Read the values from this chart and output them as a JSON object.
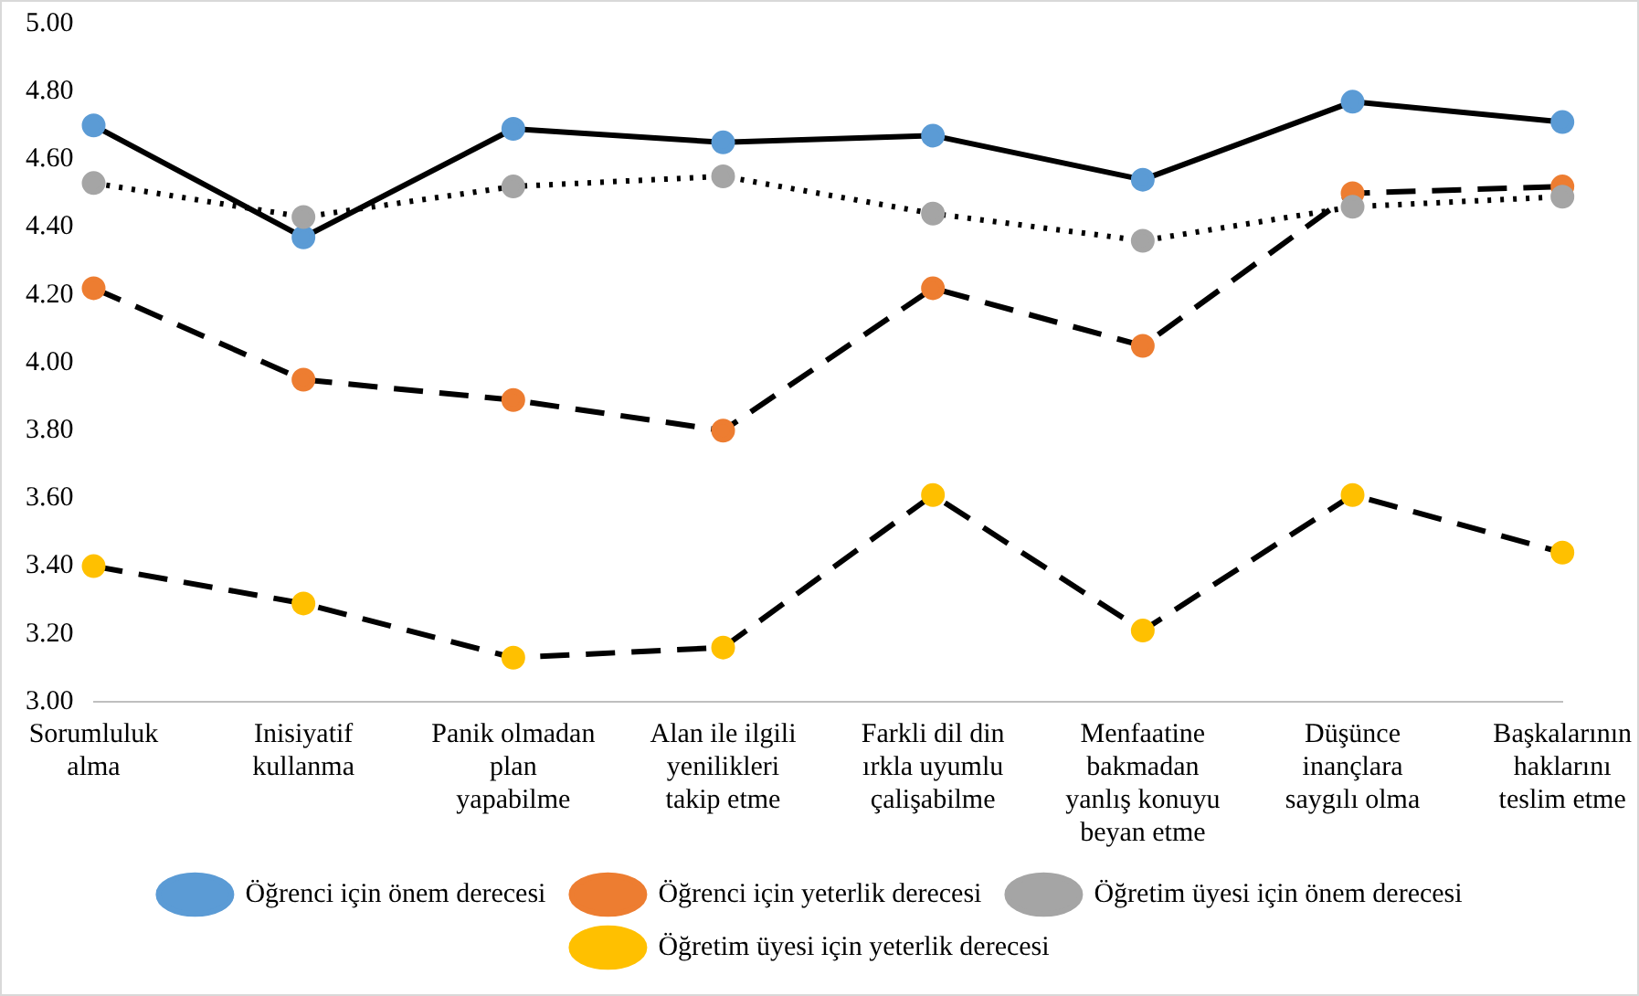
{
  "chart_data": {
    "type": "line",
    "categories": [
      "Sorumluluk alma",
      "Inisiyatif kullanma",
      "Panik olmadan plan yapabilme",
      "Alan ile ilgili yenilikleri takip etme",
      "Farkli dil din ırkla uyumlu çalişabilme",
      "Menfaatine bakmadan yanlış konuyu beyan etme",
      "Düşünce inançlara saygılı olma",
      "Başkalarının haklarını teslim etme"
    ],
    "series": [
      {
        "name": "Öğrenci için önem derecesi",
        "color": "#5b9bd5",
        "line_style": "solid",
        "values": [
          4.7,
          4.37,
          4.69,
          4.65,
          4.67,
          4.54,
          4.77,
          4.71
        ]
      },
      {
        "name": "Öğrenci için yeterlik derecesi",
        "color": "#ed7d31",
        "line_style": "dashed",
        "values": [
          4.22,
          3.95,
          3.89,
          3.8,
          4.22,
          4.05,
          4.5,
          4.52
        ]
      },
      {
        "name": "Öğretim üyesi için önem derecesi",
        "color": "#a5a5a5",
        "line_style": "dotted",
        "values": [
          4.53,
          4.43,
          4.52,
          4.55,
          4.44,
          4.36,
          4.46,
          4.49
        ]
      },
      {
        "name": "Öğretim üyesi için yeterlik derecesi",
        "color": "#ffc000",
        "line_style": "dashed",
        "values": [
          3.4,
          3.29,
          3.13,
          3.16,
          3.61,
          3.21,
          3.61,
          3.44
        ]
      }
    ],
    "ylim": [
      3,
      5
    ],
    "yticks": [
      {
        "value": 3,
        "label": "3.00"
      },
      {
        "value": 3.2,
        "label": "3.20"
      },
      {
        "value": 3.4,
        "label": "3.40"
      },
      {
        "value": 3.6,
        "label": "3.60"
      },
      {
        "value": 3.8,
        "label": "3.80"
      },
      {
        "value": 4,
        "label": "4.00"
      },
      {
        "value": 4.2,
        "label": "4.20"
      },
      {
        "value": 4.4,
        "label": "4.40"
      },
      {
        "value": 4.6,
        "label": "4.60"
      },
      {
        "value": 4.8,
        "label": "4.80"
      },
      {
        "value": 5,
        "label": "5.00"
      }
    ],
    "grid": false,
    "legend": "bottom",
    "marker": "circle"
  }
}
